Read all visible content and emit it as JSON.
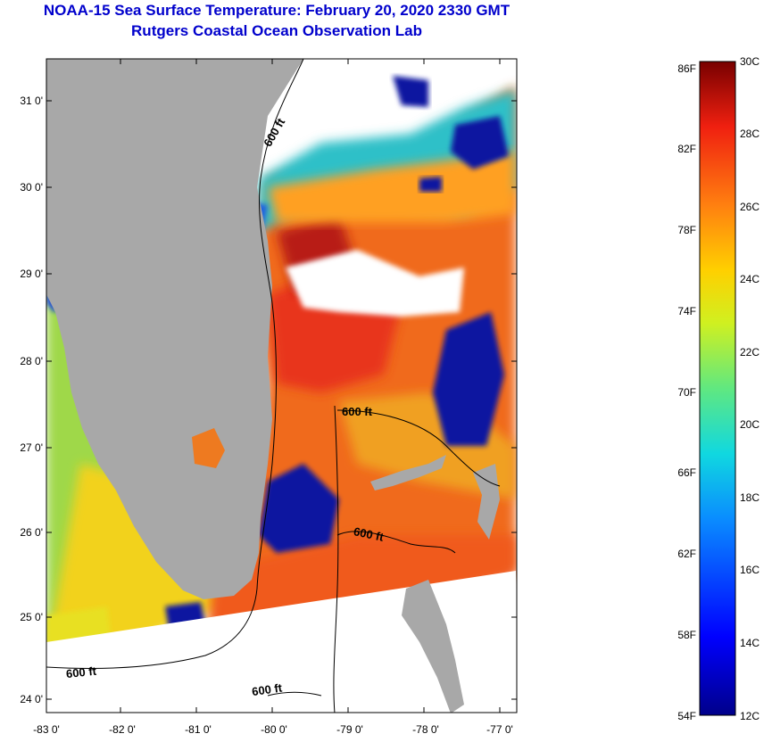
{
  "title": {
    "line1": "NOAA-15 Sea Surface Temperature:  February 20, 2020 2330 GMT",
    "line2": "Rutgers Coastal Ocean Observation Lab"
  },
  "map": {
    "lat_ticks": [
      "31 0'",
      "30 0'",
      "29 0'",
      "28 0'",
      "27 0'",
      "26 0'",
      "25 0'",
      "24 0'"
    ],
    "lon_ticks": [
      "-83 0'",
      "-82 0'",
      "-81 0'",
      "-80 0'",
      "-79 0'",
      "-78 0'",
      "-77 0'"
    ],
    "contour_label": "600 ft",
    "colors": {
      "land": "#a8a8a8",
      "frame": "#000000",
      "warm": "#f05a1a",
      "cool": "#0a1aa0"
    }
  },
  "colorbar": {
    "fahrenheit": [
      "86F",
      "82F",
      "78F",
      "74F",
      "70F",
      "66F",
      "62F",
      "58F",
      "54F"
    ],
    "celsius": [
      "30C",
      "28C",
      "26C",
      "24C",
      "22C",
      "20C",
      "18C",
      "16C",
      "14C",
      "12C"
    ]
  }
}
